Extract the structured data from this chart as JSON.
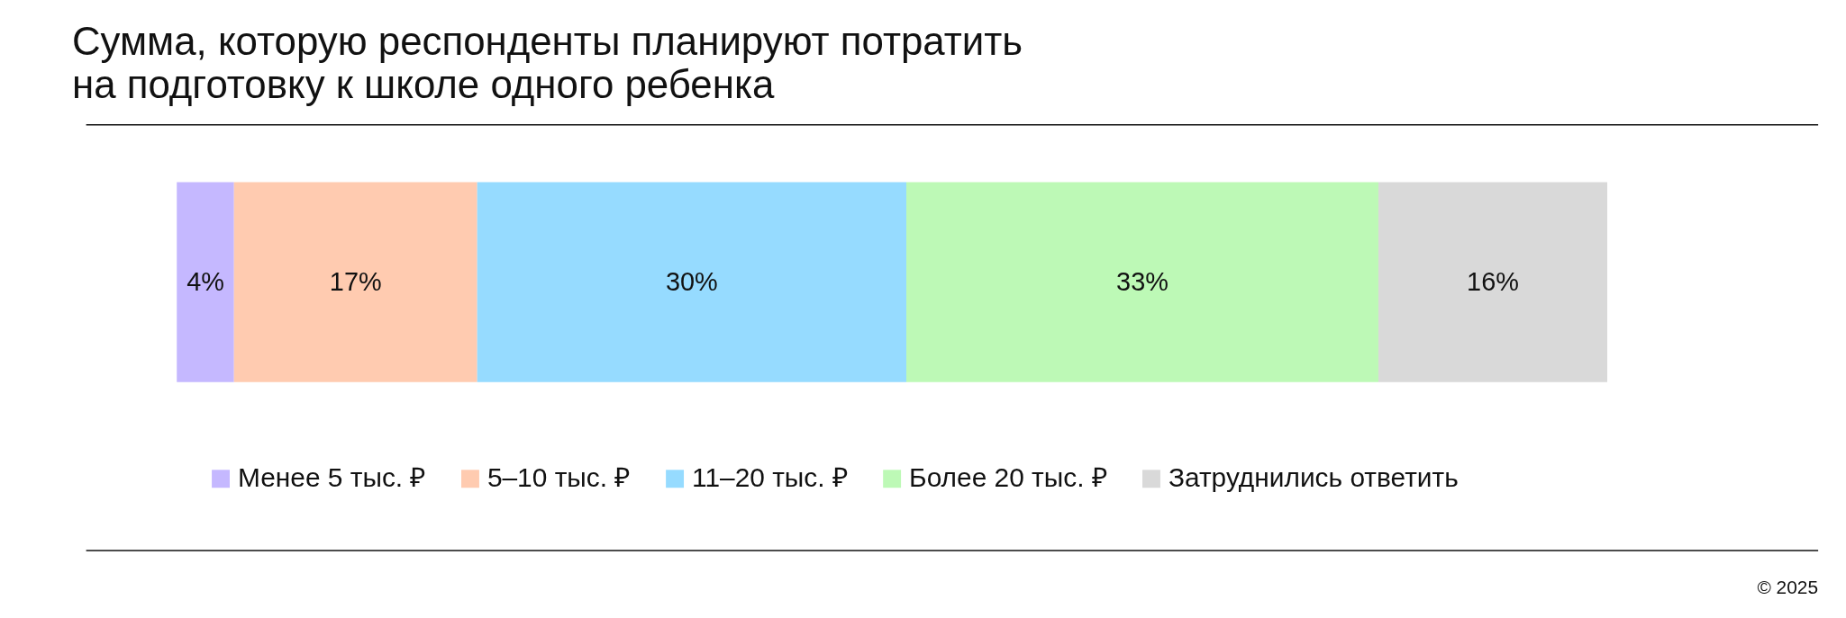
{
  "chart_data": {
    "type": "bar",
    "title": "Сумма, которую респонденты планируют потратить\nна подготовку к школе одного ребенка",
    "categories": [
      null
    ],
    "orientation": "horizontal",
    "stacked": true,
    "legend": "bottom",
    "series": [
      {
        "name": "Менее 5 тыс. ₽",
        "color": "#c5b8ff",
        "values": [
          4
        ],
        "value_labels": [
          "4%"
        ]
      },
      {
        "name": "5–10 тыс. ₽",
        "color": "#ffcbb0",
        "values": [
          17
        ],
        "value_labels": [
          "17%"
        ]
      },
      {
        "name": "11–20 тыс. ₽",
        "color": "#96dbff",
        "values": [
          30
        ],
        "value_labels": [
          "30%"
        ]
      },
      {
        "name": "Более 20 тыс. ₽",
        "color": "#bdf9b6",
        "values": [
          33
        ],
        "value_labels": [
          "33%"
        ]
      },
      {
        "name": "Затруднились ответить",
        "color": "#d9d9d9",
        "values": [
          16
        ],
        "value_labels": [
          "16%"
        ]
      }
    ],
    "annotations": [
      "© 2025"
    ]
  }
}
